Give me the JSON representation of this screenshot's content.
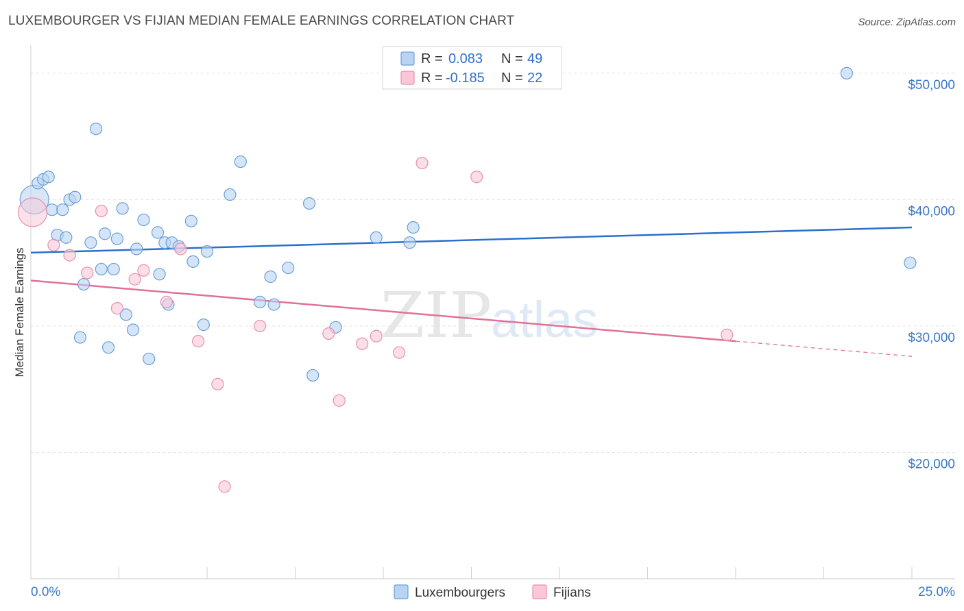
{
  "header": {
    "title": "LUXEMBOURGER VS FIJIAN MEDIAN FEMALE EARNINGS CORRELATION CHART",
    "source": "Source: ZipAtlas.com"
  },
  "watermark": {
    "zip": "ZIP",
    "atlas": "atlas"
  },
  "colors": {
    "blue_fill": "#b8d4f2",
    "blue_stroke": "#6b9fd8",
    "blue_line": "#2a6fcc",
    "pink_fill": "#f8c8d8",
    "pink_stroke": "#e890ae",
    "pink_line": "#e0709a",
    "grid": "#e3e3e3",
    "axis_text": "#3a78c9"
  },
  "legend": {
    "rows": [
      {
        "r_label": "R = ",
        "r_value": "0.083",
        "n_label": "N = ",
        "n_value": "49"
      },
      {
        "r_label": "R = ",
        "r_value": "-0.185",
        "n_label": "N = ",
        "n_value": "22"
      }
    ]
  },
  "chart_data": {
    "type": "scatter",
    "title": "LUXEMBOURGER VS FIJIAN MEDIAN FEMALE EARNINGS CORRELATION CHART",
    "xlabel": "",
    "ylabel": "Median Female Earnings",
    "xlim": [
      0,
      25
    ],
    "ylim": [
      10000,
      52000
    ],
    "x_tick_labels": [
      "0.0%",
      "25.0%"
    ],
    "y_ticks": [
      20000,
      30000,
      40000,
      50000
    ],
    "y_tick_labels": [
      "$20,000",
      "$30,000",
      "$40,000",
      "$50,000"
    ],
    "grid": true,
    "legend_position": "top-center",
    "series": [
      {
        "name": "Luxembourgers",
        "r": 0.083,
        "n": 49,
        "trend": {
          "x": [
            0,
            25
          ],
          "y": [
            35800,
            37800
          ]
        },
        "points": [
          {
            "x": 0.1,
            "y": 40000,
            "big": true
          },
          {
            "x": 0.2,
            "y": 41300
          },
          {
            "x": 0.35,
            "y": 41600
          },
          {
            "x": 0.5,
            "y": 41800
          },
          {
            "x": 0.6,
            "y": 39200
          },
          {
            "x": 0.75,
            "y": 37200
          },
          {
            "x": 0.9,
            "y": 39200
          },
          {
            "x": 1.0,
            "y": 37000
          },
          {
            "x": 1.1,
            "y": 40000
          },
          {
            "x": 1.25,
            "y": 40200
          },
          {
            "x": 1.4,
            "y": 29100
          },
          {
            "x": 1.5,
            "y": 33300
          },
          {
            "x": 1.7,
            "y": 36600
          },
          {
            "x": 1.85,
            "y": 45600
          },
          {
            "x": 2.0,
            "y": 34500
          },
          {
            "x": 2.1,
            "y": 37300
          },
          {
            "x": 2.2,
            "y": 28300
          },
          {
            "x": 2.35,
            "y": 34500
          },
          {
            "x": 2.45,
            "y": 36900
          },
          {
            "x": 2.6,
            "y": 39300
          },
          {
            "x": 2.7,
            "y": 30900
          },
          {
            "x": 2.9,
            "y": 29700
          },
          {
            "x": 3.0,
            "y": 36100
          },
          {
            "x": 3.2,
            "y": 38400
          },
          {
            "x": 3.35,
            "y": 27400
          },
          {
            "x": 3.6,
            "y": 37400
          },
          {
            "x": 3.65,
            "y": 34100
          },
          {
            "x": 3.8,
            "y": 36600
          },
          {
            "x": 3.9,
            "y": 31700
          },
          {
            "x": 4.0,
            "y": 36600
          },
          {
            "x": 4.2,
            "y": 36300
          },
          {
            "x": 4.55,
            "y": 38300
          },
          {
            "x": 4.6,
            "y": 35100
          },
          {
            "x": 4.9,
            "y": 30100
          },
          {
            "x": 5.0,
            "y": 35900
          },
          {
            "x": 5.65,
            "y": 40400
          },
          {
            "x": 5.95,
            "y": 43000
          },
          {
            "x": 6.5,
            "y": 31900
          },
          {
            "x": 6.8,
            "y": 33900
          },
          {
            "x": 6.9,
            "y": 31700
          },
          {
            "x": 7.3,
            "y": 34600
          },
          {
            "x": 7.9,
            "y": 39700
          },
          {
            "x": 8.0,
            "y": 26100
          },
          {
            "x": 8.65,
            "y": 29900
          },
          {
            "x": 9.8,
            "y": 37000
          },
          {
            "x": 10.75,
            "y": 36600
          },
          {
            "x": 10.85,
            "y": 37800
          },
          {
            "x": 23.15,
            "y": 50000
          },
          {
            "x": 24.95,
            "y": 35000
          }
        ]
      },
      {
        "name": "Fijians",
        "r": -0.185,
        "n": 22,
        "trend": {
          "x": [
            0,
            25
          ],
          "y": [
            33600,
            27600
          ],
          "solid_until": 20
        },
        "points": [
          {
            "x": 0.05,
            "y": 39000,
            "big": true
          },
          {
            "x": 0.65,
            "y": 36400
          },
          {
            "x": 1.1,
            "y": 35600
          },
          {
            "x": 1.6,
            "y": 34200
          },
          {
            "x": 2.0,
            "y": 39100
          },
          {
            "x": 2.45,
            "y": 31400
          },
          {
            "x": 2.95,
            "y": 33700
          },
          {
            "x": 3.2,
            "y": 34400
          },
          {
            "x": 3.85,
            "y": 31900
          },
          {
            "x": 4.25,
            "y": 36100
          },
          {
            "x": 4.75,
            "y": 28800
          },
          {
            "x": 5.3,
            "y": 25400
          },
          {
            "x": 5.5,
            "y": 17300
          },
          {
            "x": 6.5,
            "y": 30000
          },
          {
            "x": 8.45,
            "y": 29400
          },
          {
            "x": 8.75,
            "y": 24100
          },
          {
            "x": 9.4,
            "y": 28600
          },
          {
            "x": 9.8,
            "y": 29200
          },
          {
            "x": 10.45,
            "y": 27900
          },
          {
            "x": 11.1,
            "y": 42900
          },
          {
            "x": 12.65,
            "y": 41800
          },
          {
            "x": 19.75,
            "y": 29300
          }
        ]
      }
    ]
  }
}
